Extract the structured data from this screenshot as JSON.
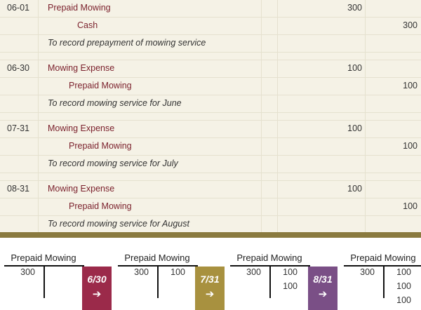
{
  "journal": [
    {
      "date": "06-01",
      "debit_account": "Prepaid Mowing",
      "debit": "300",
      "credit_account": "Cash",
      "credit": "300",
      "memo": "To record prepayment of mowing service"
    },
    {
      "date": "06-30",
      "debit_account": "Mowing Expense",
      "debit": "100",
      "credit_account": "Prepaid Mowing",
      "credit": "100",
      "memo": "To record mowing service for June"
    },
    {
      "date": "07-31",
      "debit_account": "Mowing Expense",
      "debit": "100",
      "credit_account": "Prepaid Mowing",
      "credit": "100",
      "memo": "To record mowing service for July"
    },
    {
      "date": "08-31",
      "debit_account": "Mowing Expense",
      "debit": "100",
      "credit_account": "Prepaid Mowing",
      "credit": "100",
      "memo": "To record mowing service for August"
    }
  ],
  "t_accounts": [
    {
      "title": "Prepaid Mowing",
      "debits": [
        "300"
      ],
      "credits": []
    },
    {
      "title": "Prepaid Mowing",
      "debits": [
        "300"
      ],
      "credits": [
        "100"
      ]
    },
    {
      "title": "Prepaid Mowing",
      "debits": [
        "300"
      ],
      "credits": [
        "100",
        "100"
      ]
    },
    {
      "title": "Prepaid Mowing",
      "debits": [
        "300"
      ],
      "credits": [
        "100",
        "100",
        "100"
      ]
    }
  ],
  "badges": [
    {
      "date": "6/30",
      "arrow": "➔",
      "color": "#9b2a4a"
    },
    {
      "date": "7/31",
      "arrow": "➔",
      "color": "#a8913f"
    },
    {
      "date": "8/31",
      "arrow": "➔",
      "color": "#7a4f86"
    }
  ],
  "colors": {
    "background": "#f5f2e6",
    "account_text": "#7a1f2b",
    "divider_bar": "#8a7a3f"
  }
}
